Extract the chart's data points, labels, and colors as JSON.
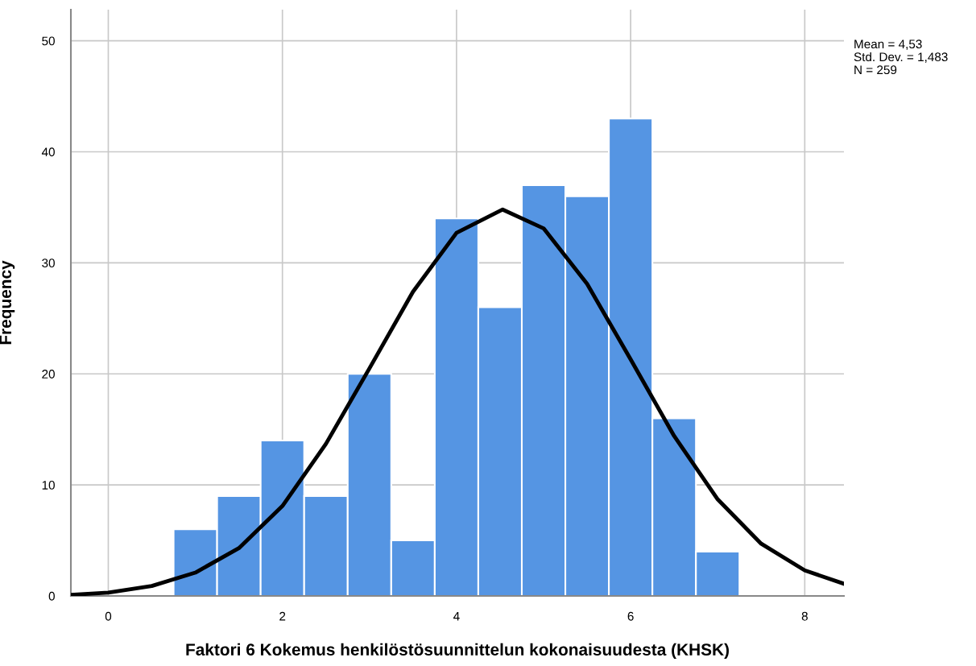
{
  "chart_data": {
    "type": "histogram",
    "xlabel": "Faktori 6 Kokemus henkilöstösuunnittelun kokonaisuudesta (KHSK)",
    "ylabel": "Frequency",
    "bins": [
      0.75,
      1.25,
      1.75,
      2.25,
      2.75,
      3.25,
      3.75,
      4.25,
      4.75,
      5.25,
      5.75,
      6.25,
      6.75,
      7.25
    ],
    "values": [
      6,
      9,
      14,
      9,
      20,
      5,
      34,
      26,
      37,
      36,
      43,
      16,
      4
    ],
    "color": "#5595e3",
    "series": [
      {
        "type": "line",
        "color": "#000000",
        "x": [
          -0.43,
          0,
          0.5,
          1,
          1.5,
          2,
          2.5,
          3,
          3.5,
          4,
          4.53,
          5,
          5.5,
          6,
          6.5,
          7,
          7.5,
          8,
          8.45
        ],
        "values": [
          0.1,
          0.3,
          0.9,
          2.1,
          4.3,
          8.1,
          13.7,
          20.5,
          27.4,
          32.7,
          34.8,
          33.1,
          28.1,
          21.3,
          14.4,
          8.7,
          4.7,
          2.3,
          1.1
        ]
      }
    ],
    "xlim": [
      -0.43,
      8.45
    ],
    "ylim": [
      0,
      52.8
    ],
    "xticks": [
      0,
      2,
      4,
      6,
      8
    ],
    "yticks": [
      0,
      10,
      20,
      30,
      40,
      50
    ],
    "grid": true,
    "annotations": [
      "Mean = 4,53",
      "Std. Dev. = 1,483",
      "N = 259"
    ]
  }
}
